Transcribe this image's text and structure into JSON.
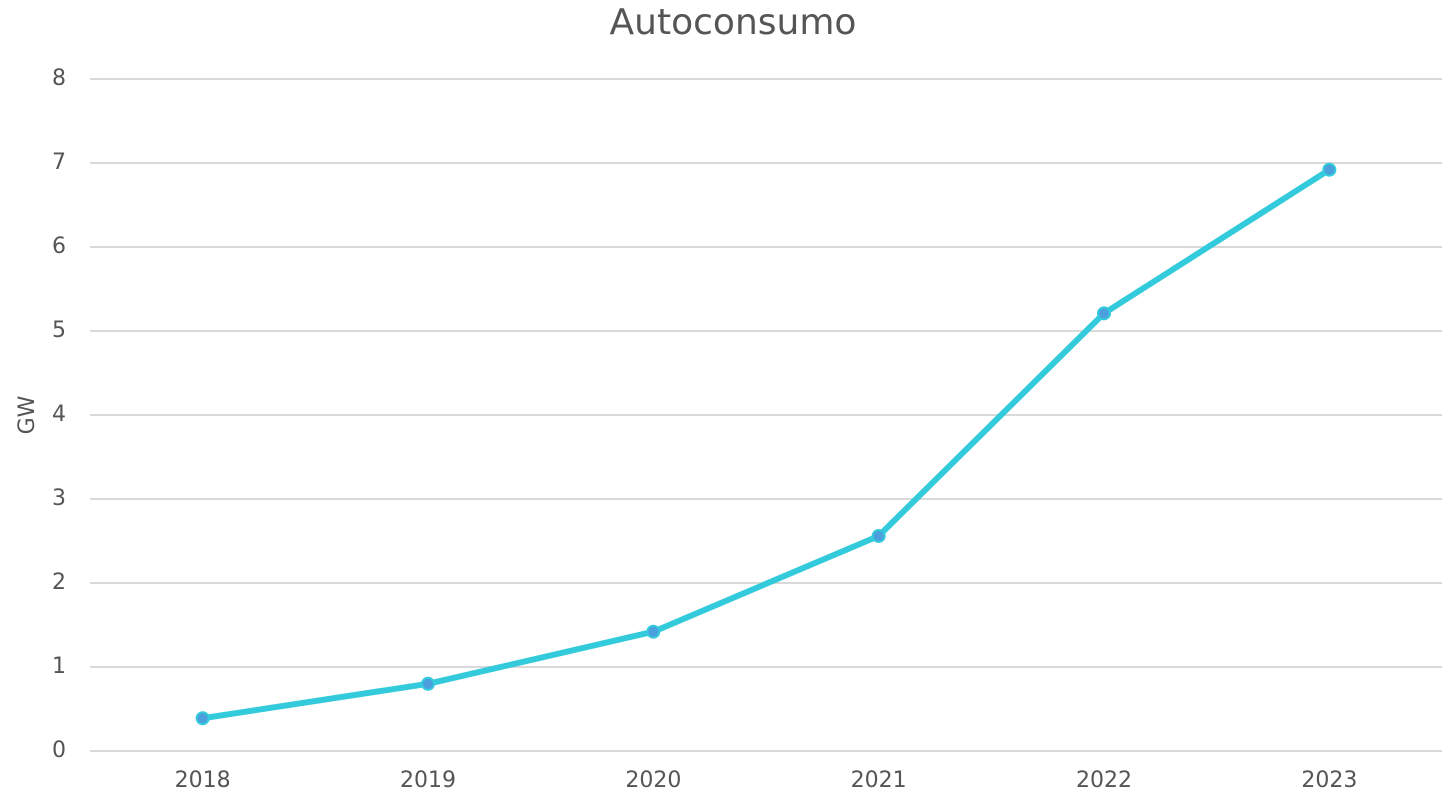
{
  "chart_data": {
    "type": "line",
    "title": "Autoconsumo",
    "y_label": "GW",
    "categories": [
      "2018",
      "2019",
      "2020",
      "2021",
      "2022",
      "2023"
    ],
    "values": [
      0.39,
      0.8,
      1.42,
      2.56,
      5.21,
      6.92
    ],
    "color": "#33cbdb",
    "marker_color": "#4a9fdc",
    "ylim": [
      0,
      8
    ],
    "yticks": [
      0,
      1,
      2,
      3,
      4,
      5,
      6,
      7,
      8
    ],
    "grid": true
  }
}
